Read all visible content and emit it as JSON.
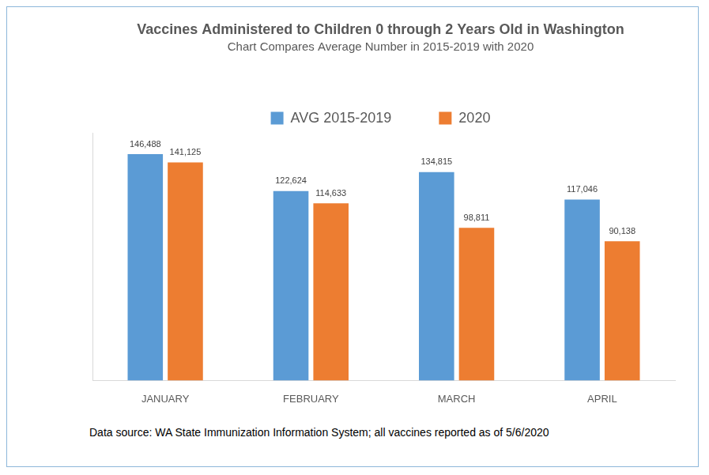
{
  "chart_data": {
    "type": "bar",
    "title": "Vaccines Administered to Children 0 through 2 Years Old in Washington",
    "subtitle": "Chart Compares Average Number in 2015-2019 with 2020",
    "categories": [
      "JANUARY",
      "FEBRUARY",
      "MARCH",
      "APRIL"
    ],
    "series": [
      {
        "name": "AVG 2015-2019",
        "color": "#5b9bd5",
        "values": [
          146488,
          122624,
          134815,
          117046
        ],
        "value_labels": [
          "146,488",
          "122,624",
          "134,815",
          "117,046"
        ]
      },
      {
        "name": "2020",
        "color": "#ed7d31",
        "values": [
          141125,
          114633,
          98811,
          90138
        ],
        "value_labels": [
          "141,125",
          "114,633",
          "98,811",
          "90,138"
        ]
      }
    ],
    "ylim": [
      0,
      160000
    ],
    "grid": false,
    "legend": "top",
    "data_labels": true,
    "tick_labels": "x",
    "annotations": [
      "Data source: WA State Immunization Information System; all vaccines reported as of 5/6/2020"
    ]
  }
}
